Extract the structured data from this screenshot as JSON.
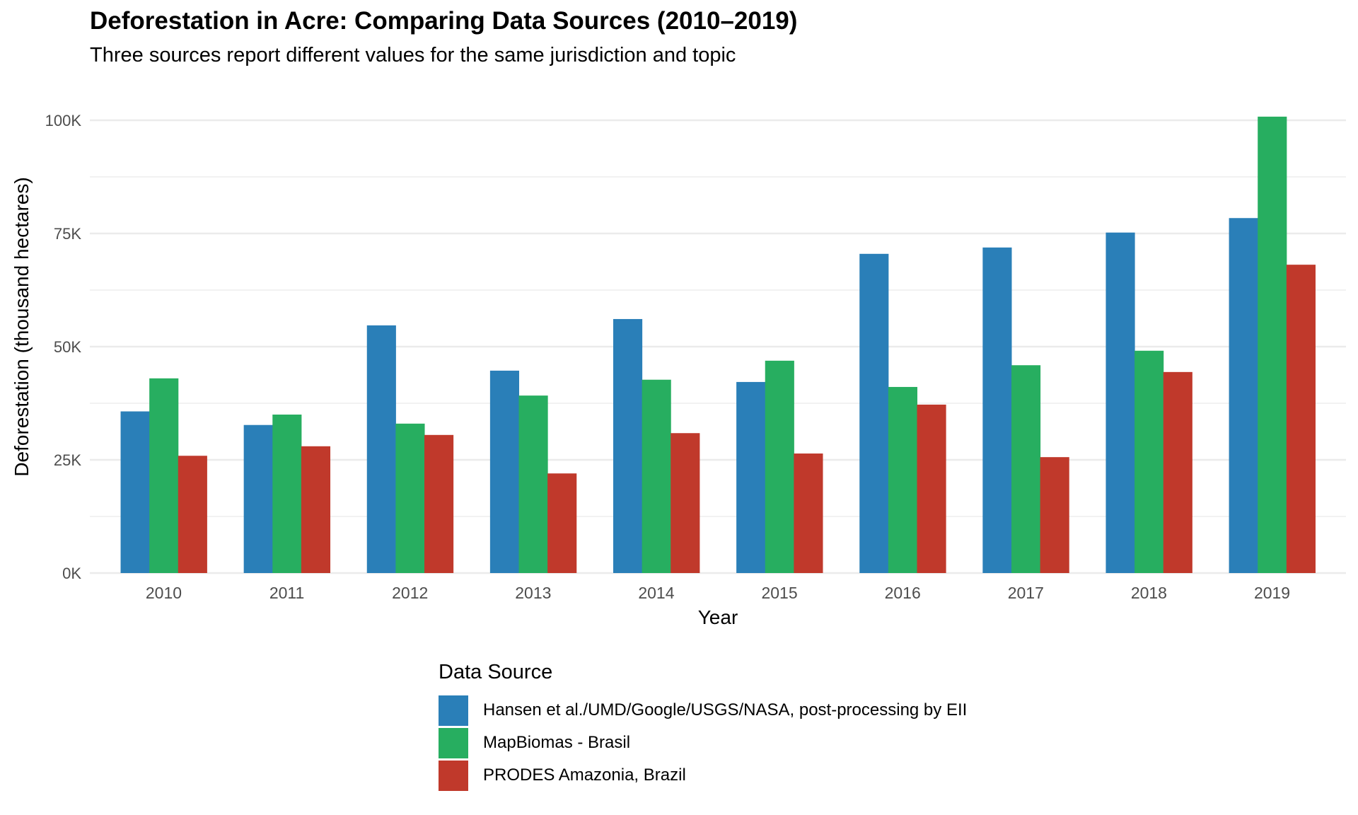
{
  "chart_data": {
    "type": "bar",
    "title": "Deforestation in Acre: Comparing Data Sources (2010–2019)",
    "subtitle": "Three sources report different values for the same jurisdiction and topic",
    "xlabel": "Year",
    "ylabel": "Deforestation (thousand hectares)",
    "categories": [
      "2010",
      "2011",
      "2012",
      "2013",
      "2014",
      "2015",
      "2016",
      "2017",
      "2018",
      "2019"
    ],
    "ylim": [
      0,
      100000
    ],
    "yticks": [
      0,
      25000,
      50000,
      75000,
      100000
    ],
    "ytick_labels": [
      "0K",
      "25K",
      "50K",
      "75K",
      "100K"
    ],
    "grid": true,
    "legend": {
      "title": "Data Source",
      "position": "bottom"
    },
    "series": [
      {
        "name": "Hansen et al./UMD/Google/USGS/NASA, post-processing by EII",
        "color": "#2a7fb8",
        "values": [
          35700,
          32700,
          54700,
          44700,
          56100,
          42200,
          70500,
          71900,
          75200,
          78400
        ]
      },
      {
        "name": "MapBiomas - Brasil",
        "color": "#27ae60",
        "values": [
          43000,
          35000,
          33000,
          39200,
          42700,
          46900,
          41100,
          45900,
          49100,
          100800
        ]
      },
      {
        "name": "PRODES Amazonia, Brazil",
        "color": "#c0392b",
        "values": [
          25900,
          28000,
          30500,
          22000,
          30900,
          26400,
          37200,
          25600,
          44400,
          68100
        ]
      }
    ]
  }
}
